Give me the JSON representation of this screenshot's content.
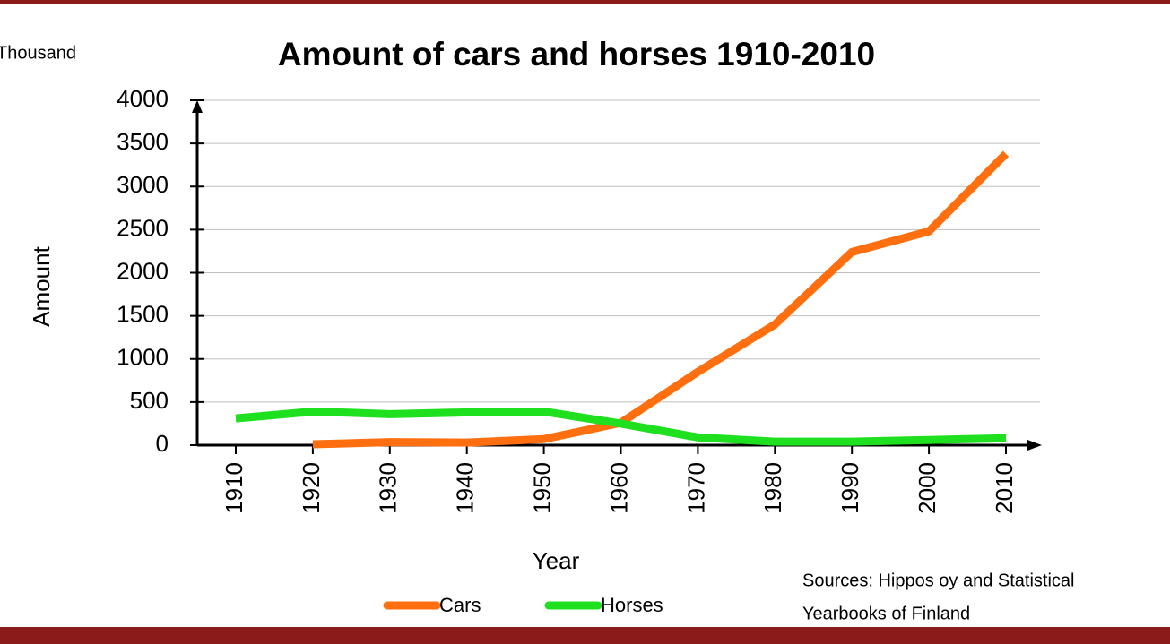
{
  "chart_data": {
    "type": "line",
    "title": "Amount of cars and horses 1910-2010",
    "unit_label": "Thousand",
    "y_label": "Amount",
    "x_label": "Year",
    "source": [
      "Sources: Hippos oy and Statistical",
      "Yearbooks of Finland"
    ],
    "categories": [
      "1910",
      "1920",
      "1930",
      "1940",
      "1950",
      "1960",
      "1970",
      "1980",
      "1990",
      "2000",
      "2010"
    ],
    "series": [
      {
        "name": "Cars",
        "color": "#ff6f0f",
        "values": [
          null,
          10,
          35,
          30,
          70,
          260,
          850,
          1400,
          2240,
          2480,
          3380
        ]
      },
      {
        "name": "Horses",
        "color": "#1ee01e",
        "values": [
          310,
          390,
          360,
          380,
          390,
          250,
          90,
          40,
          40,
          60,
          80
        ]
      }
    ],
    "ylim": [
      0,
      4000
    ],
    "yticks": [
      0,
      500,
      1000,
      1500,
      2000,
      2500,
      3000,
      3500,
      4000
    ],
    "grid": true
  }
}
